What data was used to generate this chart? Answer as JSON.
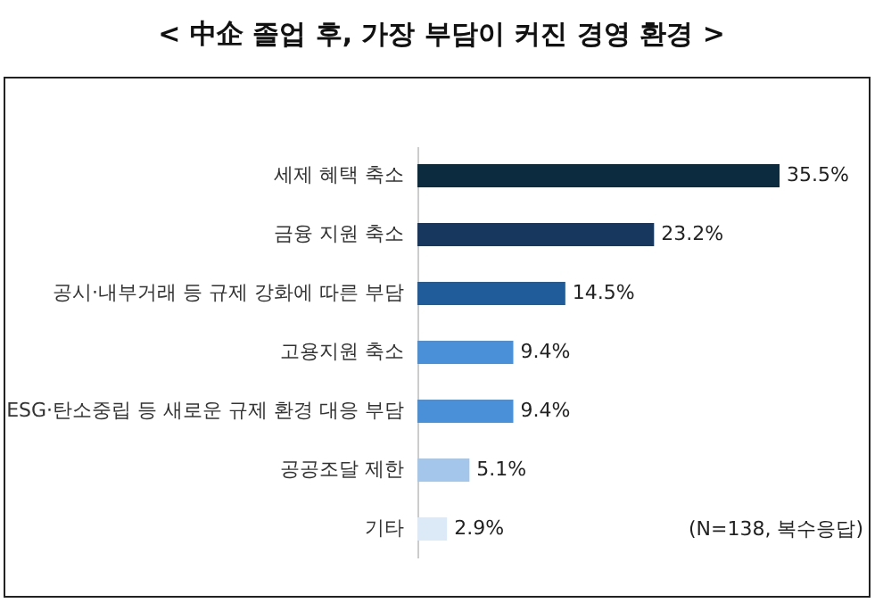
{
  "chart_data": {
    "type": "bar",
    "orientation": "horizontal",
    "title": "< 中企 졸업 후, 가장 부담이 커진 경영 환경 >",
    "categories": [
      "세제 혜택 축소",
      "금융 지원 축소",
      "공시·내부거래 등 규제 강화에 따른 부담",
      "고용지원 축소",
      "ESG·탄소중립 등 새로운 규제 환경 대응 부담",
      "공공조달 제한",
      "기타"
    ],
    "values": [
      35.5,
      23.2,
      14.5,
      9.4,
      9.4,
      5.1,
      2.9
    ],
    "value_labels": [
      "35.5%",
      "23.2%",
      "14.5%",
      "9.4%",
      "9.4%",
      "5.1%",
      "2.9%"
    ],
    "colors": [
      "#0d2b3e",
      "#17375e",
      "#1f5c99",
      "#4a90d9",
      "#4a90d9",
      "#a3c6ea",
      "#dce9f6"
    ],
    "annotations": [
      "(N=138, 복수응답)"
    ]
  }
}
